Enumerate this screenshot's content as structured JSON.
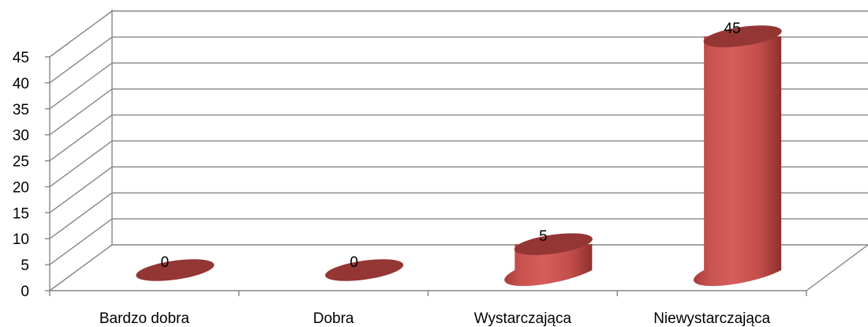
{
  "chart_data": {
    "type": "bar",
    "style": "3d-cylinder",
    "categories": [
      "Bardzo dobra",
      "Dobra",
      "Wystarczająca",
      "Niewystarczająca"
    ],
    "values": [
      0,
      0,
      5,
      45
    ],
    "data_labels": [
      "0",
      "0",
      "5",
      "45"
    ],
    "ylim": [
      0,
      45
    ],
    "yticks": [
      "0",
      "5",
      "10",
      "15",
      "20",
      "25",
      "30",
      "35",
      "40",
      "45"
    ],
    "grid": true,
    "legend": "none",
    "colors": {
      "bar": "#c0504d",
      "bar_top": "#943634",
      "bar_dark": "#8c2e2c",
      "grid": "#868686"
    }
  }
}
